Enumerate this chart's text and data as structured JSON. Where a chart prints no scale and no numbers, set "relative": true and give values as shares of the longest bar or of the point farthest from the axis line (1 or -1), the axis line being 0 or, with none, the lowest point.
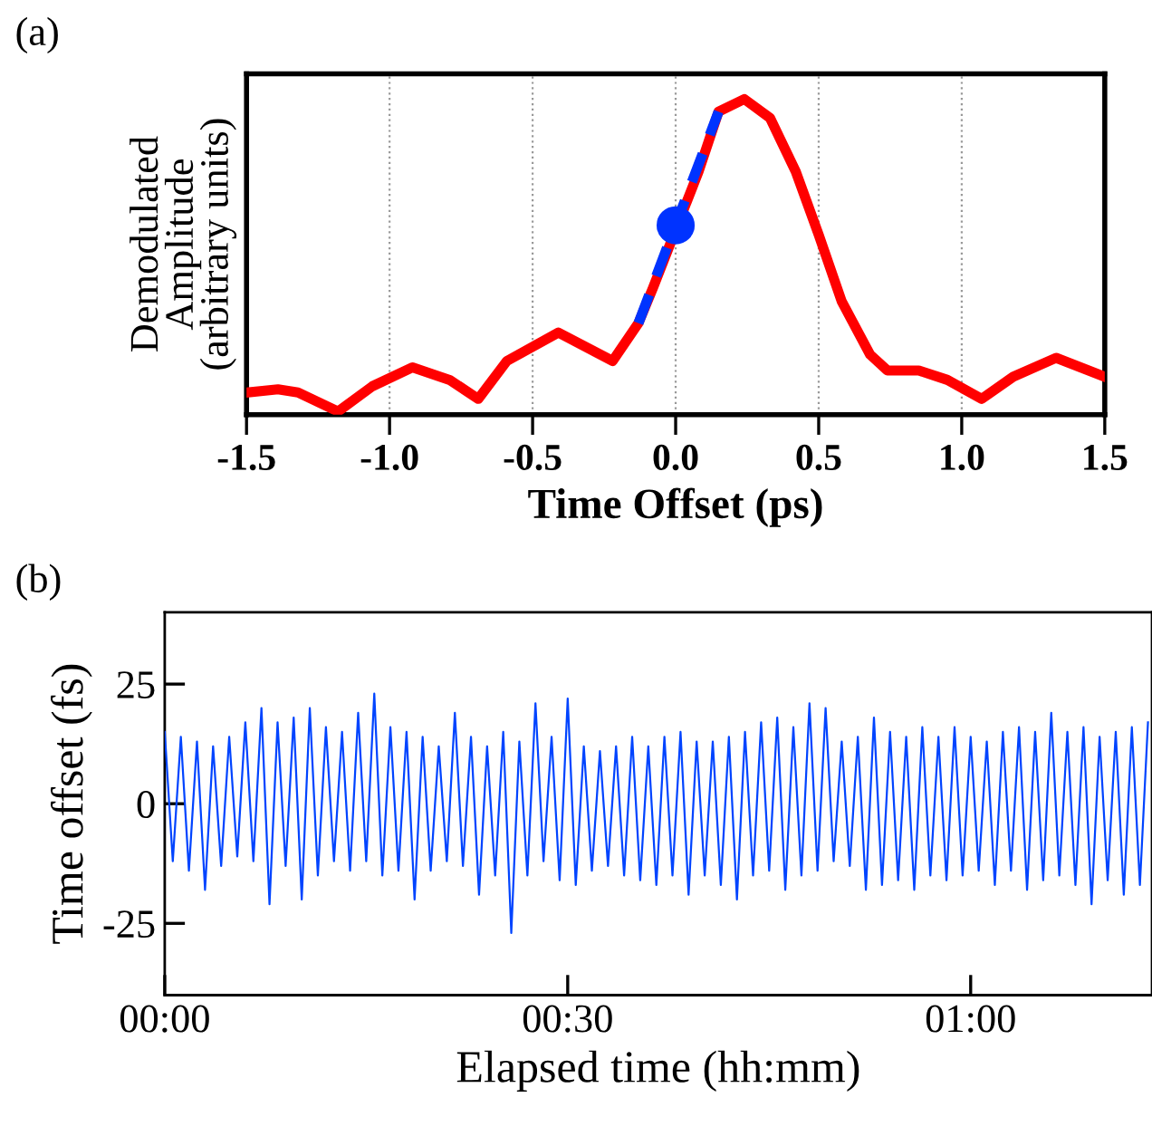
{
  "chart_data": [
    {
      "type": "line",
      "xlabel": "Time Offset (ps)",
      "ylabel": "Demodulated\nAmplitude\n(arbitrary units)",
      "annotations": [
        "(a)"
      ],
      "relative": true,
      "xlim": [
        -1.5,
        1.5
      ],
      "xticks": [
        {
          "value": -1.5,
          "label": "-1.5"
        },
        {
          "value": -1.0,
          "label": "-1.0"
        },
        {
          "value": -0.5,
          "label": "-0.5"
        },
        {
          "value": 0.0,
          "label": "0.0"
        },
        {
          "value": 0.5,
          "label": "0.5"
        },
        {
          "value": 1.0,
          "label": "1.0"
        },
        {
          "value": 1.5,
          "label": "1.5"
        }
      ],
      "grid": "x",
      "series": [
        {
          "color": "#ff0000",
          "line_style": "solid",
          "x": [
            -1.5,
            -1.39,
            -1.32,
            -1.18,
            -1.06,
            -0.92,
            -0.79,
            -0.69,
            -0.59,
            -0.41,
            -0.22,
            -0.13,
            -0.08,
            0.08,
            0.15,
            0.24,
            0.33,
            0.42,
            0.5,
            0.58,
            0.68,
            0.74,
            0.85,
            0.95,
            1.07,
            1.18,
            1.33,
            1.5
          ],
          "values": [
            0.07,
            0.08,
            0.07,
            0.01,
            0.09,
            0.15,
            0.11,
            0.05,
            0.17,
            0.26,
            0.17,
            0.29,
            0.4,
            0.77,
            0.96,
            1.0,
            0.94,
            0.77,
            0.57,
            0.36,
            0.19,
            0.14,
            0.14,
            0.11,
            0.05,
            0.12,
            0.18,
            0.12
          ]
        },
        {
          "color": "#0033ff",
          "line_style": "dashed",
          "x": [
            -0.13,
            0.15
          ],
          "values": [
            0.29,
            0.96
          ]
        },
        {
          "type": "scatter",
          "color": "#0033ff",
          "marker": "circle",
          "x": [
            0.0
          ],
          "values": [
            0.6
          ]
        }
      ]
    },
    {
      "type": "line",
      "xlabel": "Elapsed time (hh:mm)",
      "ylabel": "Time offset (fs)",
      "annotations": [
        "(b)"
      ],
      "xlim": [
        0,
        1.225
      ],
      "xticks": [
        {
          "value": 0,
          "label": "00:00"
        },
        {
          "value": 0.5,
          "label": "00:30"
        },
        {
          "value": 1,
          "label": "01:00"
        }
      ],
      "ylim": [
        -40,
        40
      ],
      "yticks": [
        -25,
        0,
        25
      ],
      "series": [
        {
          "color": "#0044ff",
          "line_style": "solid",
          "x": [
            0.0,
            0.01,
            0.02,
            0.03,
            0.04,
            0.05,
            0.06,
            0.07,
            0.08,
            0.09,
            0.1,
            0.11,
            0.12,
            0.13,
            0.14,
            0.15,
            0.16,
            0.17,
            0.18,
            0.19,
            0.2,
            0.21,
            0.22,
            0.23,
            0.24,
            0.25,
            0.26,
            0.27,
            0.28,
            0.29,
            0.3,
            0.31,
            0.32,
            0.33,
            0.34,
            0.35,
            0.36,
            0.37,
            0.38,
            0.39,
            0.4,
            0.41,
            0.42,
            0.43,
            0.44,
            0.45,
            0.46,
            0.47,
            0.48,
            0.49,
            0.5,
            0.51,
            0.52,
            0.53,
            0.54,
            0.55,
            0.56,
            0.57,
            0.58,
            0.59,
            0.6,
            0.61,
            0.62,
            0.63,
            0.64,
            0.65,
            0.66,
            0.67,
            0.68,
            0.69,
            0.7,
            0.71,
            0.72,
            0.73,
            0.74,
            0.75,
            0.76,
            0.77,
            0.78,
            0.79,
            0.8,
            0.81,
            0.82,
            0.83,
            0.84,
            0.85,
            0.86,
            0.87,
            0.88,
            0.89,
            0.9,
            0.91,
            0.92,
            0.93,
            0.94,
            0.95,
            0.96,
            0.97,
            0.98,
            0.99,
            1.0,
            1.01,
            1.02,
            1.03,
            1.04,
            1.05,
            1.06,
            1.07,
            1.08,
            1.09,
            1.1,
            1.11,
            1.12,
            1.13,
            1.14,
            1.15,
            1.16,
            1.17,
            1.18,
            1.19,
            1.2,
            1.21,
            1.22
          ],
          "values": [
            15,
            -12,
            14,
            -14,
            13,
            -18,
            12,
            -13,
            14,
            -11,
            17,
            -12,
            20,
            -21,
            17,
            -13,
            18,
            -20,
            20,
            -15,
            16,
            -12,
            15,
            -14,
            19,
            -12,
            23,
            -15,
            16,
            -14,
            15,
            -20,
            14,
            -14,
            12,
            -12,
            19,
            -13,
            14,
            -19,
            12,
            -15,
            15,
            -27,
            13,
            -15,
            21,
            -12,
            14,
            -16,
            22,
            -17,
            12,
            -14,
            11,
            -13,
            12,
            -15,
            14,
            -16,
            12,
            -17,
            14,
            -15,
            15,
            -19,
            13,
            -15,
            13,
            -17,
            14,
            -20,
            15,
            -15,
            17,
            -14,
            18,
            -18,
            16,
            -15,
            21,
            -14,
            20,
            -12,
            13,
            -13,
            14,
            -18,
            18,
            -17,
            15,
            -16,
            14,
            -18,
            16,
            -15,
            14,
            -16,
            16,
            -15,
            14,
            -14,
            13,
            -17,
            15,
            -14,
            16,
            -18,
            15,
            -16,
            19,
            -15,
            15,
            -17,
            16,
            -21,
            14,
            -16,
            15,
            -19,
            16,
            -17,
            17
          ]
        }
      ]
    }
  ]
}
